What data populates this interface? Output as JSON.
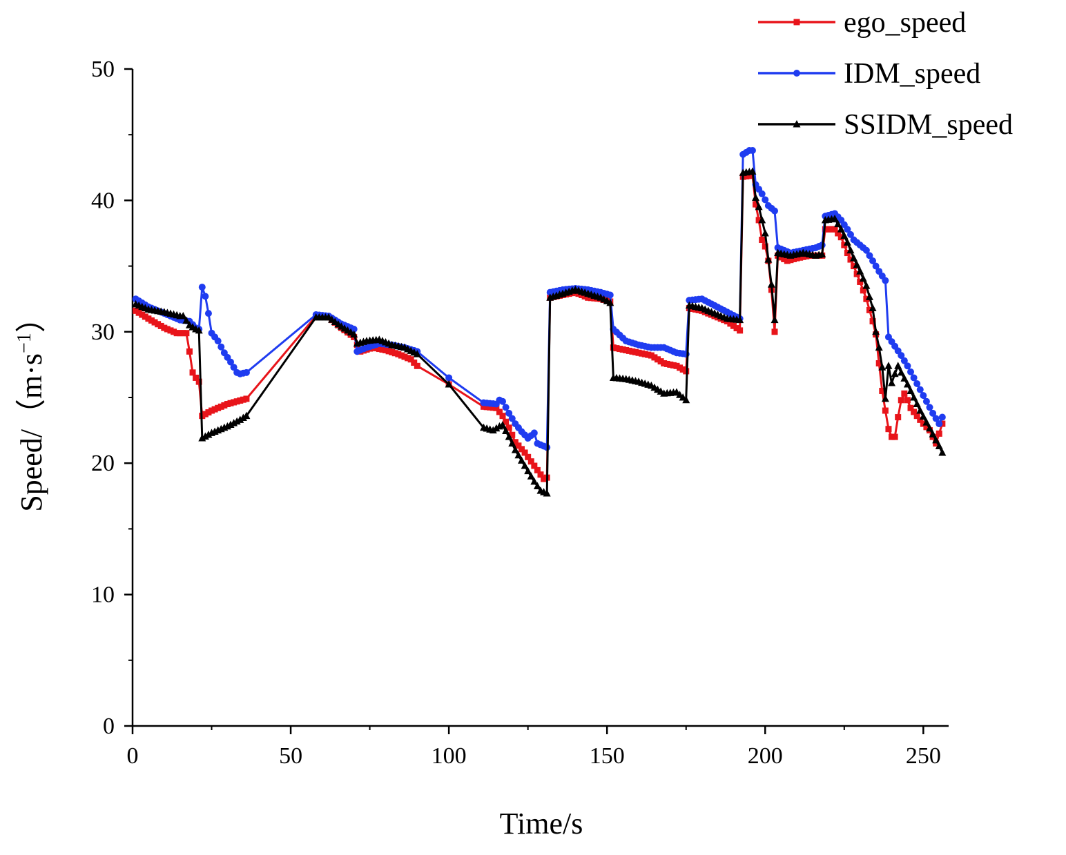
{
  "chart_data": {
    "type": "line",
    "title": "",
    "xlabel": "Time/s",
    "ylabel_main": "Speed/",
    "ylabel_unit": "（m·s",
    "ylabel_sup": "−1",
    "ylabel_close": "）",
    "xlim": [
      0,
      258
    ],
    "ylim": [
      0,
      50
    ],
    "xticks": [
      0,
      50,
      100,
      150,
      200,
      250
    ],
    "yticks": [
      0,
      10,
      20,
      30,
      40,
      50
    ],
    "xtick_labels": [
      "0",
      "50",
      "100",
      "150",
      "200",
      "250"
    ],
    "ytick_labels": [
      "0",
      "10",
      "20",
      "30",
      "40",
      "50"
    ],
    "legend_position": "top-right",
    "series": [
      {
        "name": "ego_speed",
        "color": "#e8141a",
        "marker": "square",
        "points": [
          [
            1,
            31.6
          ],
          [
            5,
            31.0
          ],
          [
            10,
            30.3
          ],
          [
            14,
            29.9
          ],
          [
            17,
            29.9
          ],
          [
            18,
            28.5
          ],
          [
            19,
            26.9
          ],
          [
            20,
            26.5
          ],
          [
            21,
            26.2
          ],
          [
            22,
            23.6
          ],
          [
            25,
            24.0
          ],
          [
            30,
            24.5
          ],
          [
            33,
            24.7
          ],
          [
            36,
            24.9
          ],
          [
            58,
            31.2
          ],
          [
            62,
            31.1
          ],
          [
            66,
            30.3
          ],
          [
            70,
            29.6
          ],
          [
            71,
            29.0
          ],
          [
            72,
            28.5
          ],
          [
            76,
            28.8
          ],
          [
            80,
            28.6
          ],
          [
            84,
            28.3
          ],
          [
            88,
            27.9
          ],
          [
            90,
            27.4
          ],
          [
            100,
            26.0
          ],
          [
            111,
            24.3
          ],
          [
            115,
            24.2
          ],
          [
            117,
            23.6
          ],
          [
            119,
            22.7
          ],
          [
            121,
            21.6
          ],
          [
            124,
            20.8
          ],
          [
            127,
            19.8
          ],
          [
            130,
            18.8
          ],
          [
            131,
            18.9
          ],
          [
            132,
            32.6
          ],
          [
            136,
            32.8
          ],
          [
            140,
            33.0
          ],
          [
            144,
            32.6
          ],
          [
            148,
            32.5
          ],
          [
            151,
            32.3
          ],
          [
            152,
            28.8
          ],
          [
            156,
            28.6
          ],
          [
            160,
            28.4
          ],
          [
            164,
            28.2
          ],
          [
            168,
            27.6
          ],
          [
            172,
            27.4
          ],
          [
            175,
            27.0
          ],
          [
            176,
            31.8
          ],
          [
            180,
            31.6
          ],
          [
            184,
            31.2
          ],
          [
            188,
            30.8
          ],
          [
            192,
            30.1
          ],
          [
            193,
            41.8
          ],
          [
            196,
            41.9
          ],
          [
            197,
            39.7
          ],
          [
            198,
            38.5
          ],
          [
            199,
            37.0
          ],
          [
            200,
            36.5
          ],
          [
            201,
            35.4
          ],
          [
            202,
            33.2
          ],
          [
            203,
            30.0
          ],
          [
            204,
            35.8
          ],
          [
            207,
            35.4
          ],
          [
            210,
            35.6
          ],
          [
            214,
            35.8
          ],
          [
            218,
            35.8
          ],
          [
            219,
            37.8
          ],
          [
            222,
            37.8
          ],
          [
            224,
            37.2
          ],
          [
            226,
            36.0
          ],
          [
            228,
            35.0
          ],
          [
            230,
            33.8
          ],
          [
            232,
            32.5
          ],
          [
            234,
            30.8
          ],
          [
            235,
            29.8
          ],
          [
            236,
            27.6
          ],
          [
            237,
            25.5
          ],
          [
            238,
            24.0
          ],
          [
            239,
            22.6
          ],
          [
            240,
            22.0
          ],
          [
            241,
            22.0
          ],
          [
            242,
            23.5
          ],
          [
            243,
            24.8
          ],
          [
            244,
            25.3
          ],
          [
            245,
            24.8
          ],
          [
            246,
            24.2
          ],
          [
            248,
            23.6
          ],
          [
            250,
            23.0
          ],
          [
            252,
            22.5
          ],
          [
            254,
            21.5
          ],
          [
            256,
            23.0
          ]
        ]
      },
      {
        "name": "IDM_speed",
        "color": "#1f3cf0",
        "marker": "circle",
        "points": [
          [
            1,
            32.5
          ],
          [
            5,
            31.9
          ],
          [
            10,
            31.4
          ],
          [
            15,
            30.9
          ],
          [
            18,
            30.8
          ],
          [
            20,
            30.3
          ],
          [
            21,
            30.2
          ],
          [
            22,
            33.4
          ],
          [
            23,
            32.7
          ],
          [
            24,
            31.4
          ],
          [
            25,
            29.9
          ],
          [
            27,
            29.3
          ],
          [
            29,
            28.4
          ],
          [
            31,
            27.7
          ],
          [
            33,
            26.9
          ],
          [
            34,
            26.8
          ],
          [
            36,
            26.9
          ],
          [
            58,
            31.3
          ],
          [
            62,
            31.2
          ],
          [
            66,
            30.6
          ],
          [
            70,
            30.2
          ],
          [
            71,
            28.5
          ],
          [
            74,
            28.8
          ],
          [
            78,
            29.1
          ],
          [
            82,
            29.0
          ],
          [
            86,
            28.8
          ],
          [
            90,
            28.5
          ],
          [
            100,
            26.5
          ],
          [
            111,
            24.6
          ],
          [
            115,
            24.5
          ],
          [
            116,
            24.8
          ],
          [
            117,
            24.7
          ],
          [
            119,
            23.8
          ],
          [
            121,
            23.0
          ],
          [
            123,
            22.4
          ],
          [
            125,
            21.9
          ],
          [
            127,
            22.3
          ],
          [
            128,
            21.5
          ],
          [
            130,
            21.3
          ],
          [
            131,
            21.2
          ],
          [
            132,
            33.0
          ],
          [
            136,
            33.2
          ],
          [
            140,
            33.3
          ],
          [
            144,
            33.2
          ],
          [
            148,
            33.0
          ],
          [
            151,
            32.8
          ],
          [
            152,
            30.2
          ],
          [
            156,
            29.3
          ],
          [
            160,
            29.0
          ],
          [
            164,
            28.8
          ],
          [
            168,
            28.8
          ],
          [
            172,
            28.4
          ],
          [
            175,
            28.3
          ],
          [
            176,
            32.4
          ],
          [
            180,
            32.5
          ],
          [
            184,
            32.0
          ],
          [
            188,
            31.5
          ],
          [
            192,
            31.0
          ],
          [
            193,
            43.5
          ],
          [
            195,
            43.8
          ],
          [
            196,
            43.8
          ],
          [
            197,
            41.2
          ],
          [
            199,
            40.5
          ],
          [
            201,
            39.6
          ],
          [
            203,
            39.2
          ],
          [
            204,
            36.4
          ],
          [
            208,
            36.0
          ],
          [
            212,
            36.2
          ],
          [
            216,
            36.4
          ],
          [
            218,
            36.6
          ],
          [
            219,
            38.8
          ],
          [
            222,
            39.0
          ],
          [
            224,
            38.5
          ],
          [
            226,
            37.8
          ],
          [
            228,
            37.0
          ],
          [
            230,
            36.6
          ],
          [
            232,
            36.2
          ],
          [
            234,
            35.4
          ],
          [
            236,
            34.6
          ],
          [
            238,
            33.9
          ],
          [
            239,
            29.6
          ],
          [
            241,
            28.9
          ],
          [
            243,
            28.2
          ],
          [
            245,
            27.4
          ],
          [
            247,
            26.5
          ],
          [
            249,
            25.6
          ],
          [
            251,
            24.7
          ],
          [
            253,
            23.8
          ],
          [
            255,
            23.0
          ],
          [
            256,
            23.5
          ]
        ]
      },
      {
        "name": "SSIDM_speed",
        "color": "#000000",
        "marker": "triangle",
        "points": [
          [
            1,
            32.1
          ],
          [
            5,
            31.7
          ],
          [
            10,
            31.5
          ],
          [
            15,
            31.2
          ],
          [
            16,
            31.2
          ],
          [
            18,
            30.5
          ],
          [
            20,
            30.2
          ],
          [
            21,
            30.1
          ],
          [
            22,
            21.9
          ],
          [
            25,
            22.3
          ],
          [
            30,
            22.8
          ],
          [
            34,
            23.3
          ],
          [
            36,
            23.6
          ],
          [
            58,
            31.1
          ],
          [
            62,
            31.1
          ],
          [
            66,
            30.4
          ],
          [
            70,
            29.8
          ],
          [
            71,
            29.1
          ],
          [
            74,
            29.3
          ],
          [
            78,
            29.4
          ],
          [
            82,
            29.0
          ],
          [
            86,
            28.8
          ],
          [
            90,
            28.3
          ],
          [
            100,
            26.0
          ],
          [
            111,
            22.7
          ],
          [
            114,
            22.5
          ],
          [
            116,
            22.8
          ],
          [
            117,
            22.9
          ],
          [
            119,
            22.0
          ],
          [
            121,
            21.0
          ],
          [
            124,
            19.8
          ],
          [
            127,
            18.6
          ],
          [
            129,
            17.9
          ],
          [
            131,
            17.7
          ],
          [
            132,
            32.6
          ],
          [
            136,
            32.9
          ],
          [
            140,
            33.2
          ],
          [
            144,
            32.9
          ],
          [
            148,
            32.6
          ],
          [
            151,
            32.2
          ],
          [
            152,
            26.5
          ],
          [
            156,
            26.4
          ],
          [
            160,
            26.2
          ],
          [
            164,
            25.9
          ],
          [
            168,
            25.3
          ],
          [
            172,
            25.4
          ],
          [
            175,
            24.8
          ],
          [
            176,
            32.0
          ],
          [
            180,
            31.8
          ],
          [
            184,
            31.4
          ],
          [
            188,
            31.0
          ],
          [
            192,
            30.9
          ],
          [
            193,
            42.1
          ],
          [
            196,
            42.2
          ],
          [
            197,
            40.2
          ],
          [
            198,
            39.5
          ],
          [
            199,
            38.5
          ],
          [
            200,
            37.5
          ],
          [
            201,
            35.5
          ],
          [
            202,
            33.6
          ],
          [
            203,
            30.9
          ],
          [
            204,
            36.0
          ],
          [
            208,
            35.8
          ],
          [
            212,
            36.0
          ],
          [
            216,
            35.8
          ],
          [
            218,
            35.9
          ],
          [
            219,
            38.5
          ],
          [
            222,
            38.6
          ],
          [
            224,
            37.8
          ],
          [
            226,
            36.8
          ],
          [
            228,
            35.6
          ],
          [
            230,
            34.6
          ],
          [
            232,
            33.5
          ],
          [
            234,
            31.8
          ],
          [
            235,
            30.0
          ],
          [
            236,
            28.8
          ],
          [
            237,
            27.3
          ],
          [
            238,
            24.9
          ],
          [
            239,
            27.4
          ],
          [
            240,
            26.1
          ],
          [
            241,
            26.8
          ],
          [
            242,
            27.4
          ],
          [
            243,
            26.9
          ],
          [
            245,
            26.0
          ],
          [
            247,
            25.0
          ],
          [
            249,
            24.0
          ],
          [
            251,
            23.1
          ],
          [
            253,
            22.2
          ],
          [
            255,
            21.3
          ],
          [
            256,
            20.8
          ]
        ]
      }
    ]
  }
}
